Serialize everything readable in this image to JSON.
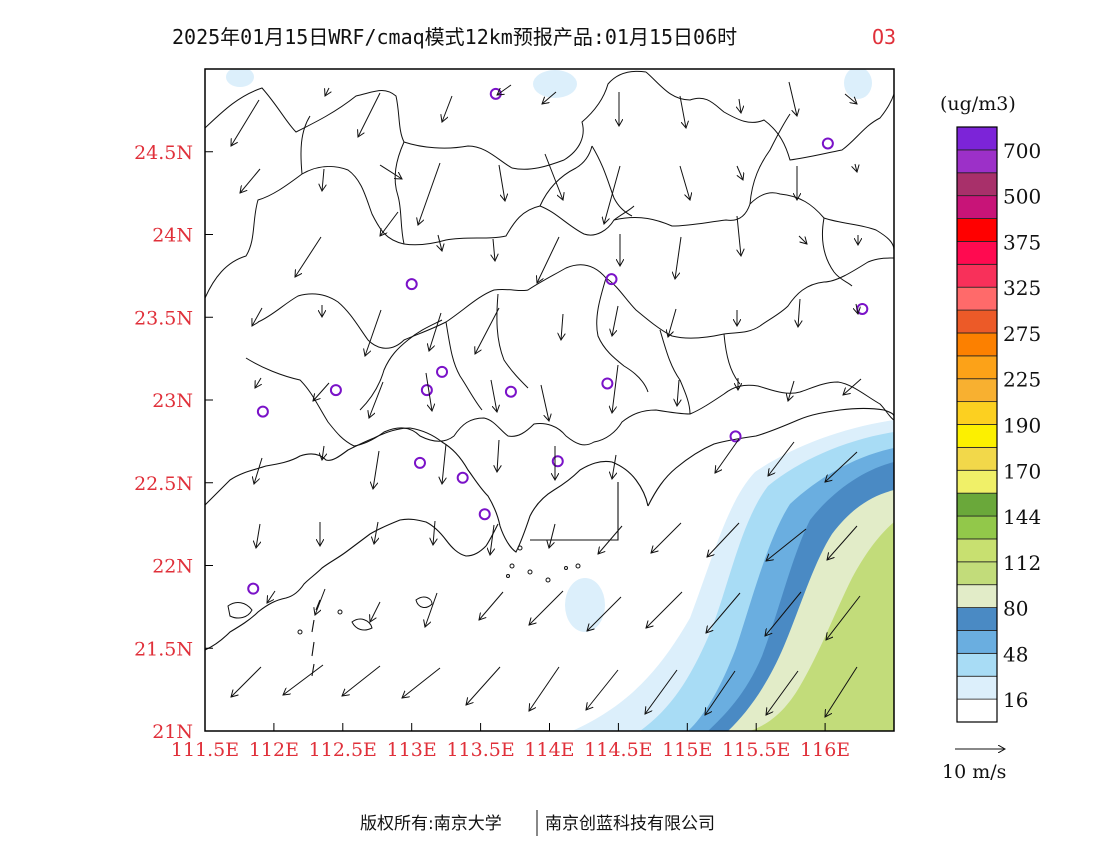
{
  "title": {
    "main": "2025年01月15日WRF/cmaq模式12km预报产品:01月15日06时",
    "species": "O3"
  },
  "map": {
    "lon_range": [
      111.5,
      116.5
    ],
    "lat_range": [
      21.0,
      25.0
    ],
    "x_ticks": [
      {
        "value": 111.5,
        "label": "111.5E"
      },
      {
        "value": 112.0,
        "label": "112E"
      },
      {
        "value": 112.5,
        "label": "112.5E"
      },
      {
        "value": 113.0,
        "label": "113E"
      },
      {
        "value": 113.5,
        "label": "113.5E"
      },
      {
        "value": 114.0,
        "label": "114E"
      },
      {
        "value": 114.5,
        "label": "114.5E"
      },
      {
        "value": 115.0,
        "label": "115E"
      },
      {
        "value": 115.5,
        "label": "115.5E"
      },
      {
        "value": 116.0,
        "label": "116E"
      }
    ],
    "y_ticks": [
      {
        "value": 21.0,
        "label": "21N"
      },
      {
        "value": 21.5,
        "label": "21.5N"
      },
      {
        "value": 22.0,
        "label": "22N"
      },
      {
        "value": 22.5,
        "label": "22.5N"
      },
      {
        "value": 23.0,
        "label": "23N"
      },
      {
        "value": 23.5,
        "label": "23.5N"
      },
      {
        "value": 24.0,
        "label": "24N"
      },
      {
        "value": 24.5,
        "label": "24.5N"
      }
    ],
    "stations": [
      [
        113.61,
        24.85
      ],
      [
        116.02,
        24.55
      ],
      [
        113.0,
        23.7
      ],
      [
        114.45,
        23.73
      ],
      [
        116.27,
        23.55
      ],
      [
        113.22,
        23.17
      ],
      [
        112.45,
        23.06
      ],
      [
        113.11,
        23.06
      ],
      [
        113.72,
        23.05
      ],
      [
        114.42,
        23.1
      ],
      [
        111.92,
        22.93
      ],
      [
        115.35,
        22.78
      ],
      [
        113.06,
        22.62
      ],
      [
        113.37,
        22.53
      ],
      [
        114.06,
        22.63
      ],
      [
        113.53,
        22.31
      ],
      [
        111.85,
        21.86
      ]
    ]
  },
  "colorbar": {
    "unit": "(ug/m3)",
    "colors": [
      "#ffffff",
      "#dceffb",
      "#a8dcf5",
      "#6aaee0",
      "#4a8ac4",
      "#e2ecc8",
      "#c2dc7a",
      "#c8e070",
      "#92c84a",
      "#6aa83a",
      "#f0f068",
      "#f2d84a",
      "#fcf000",
      "#fcd020",
      "#f8b030",
      "#fca218",
      "#fc8000",
      "#ec5a28",
      "#ff6a6a",
      "#f8305a",
      "#ff0a50",
      "#ff0000",
      "#c81478",
      "#a8306a",
      "#9c30c8",
      "#7c24d8"
    ],
    "labels": [
      "16",
      "48",
      "80",
      "112",
      "144",
      "170",
      "190",
      "225",
      "275",
      "325",
      "375",
      "500",
      "700"
    ]
  },
  "wind_legend": {
    "label": "10 m/s"
  },
  "footer": {
    "left": "版权所有:南京大学",
    "right": "南京创蓝科技有限公司"
  }
}
